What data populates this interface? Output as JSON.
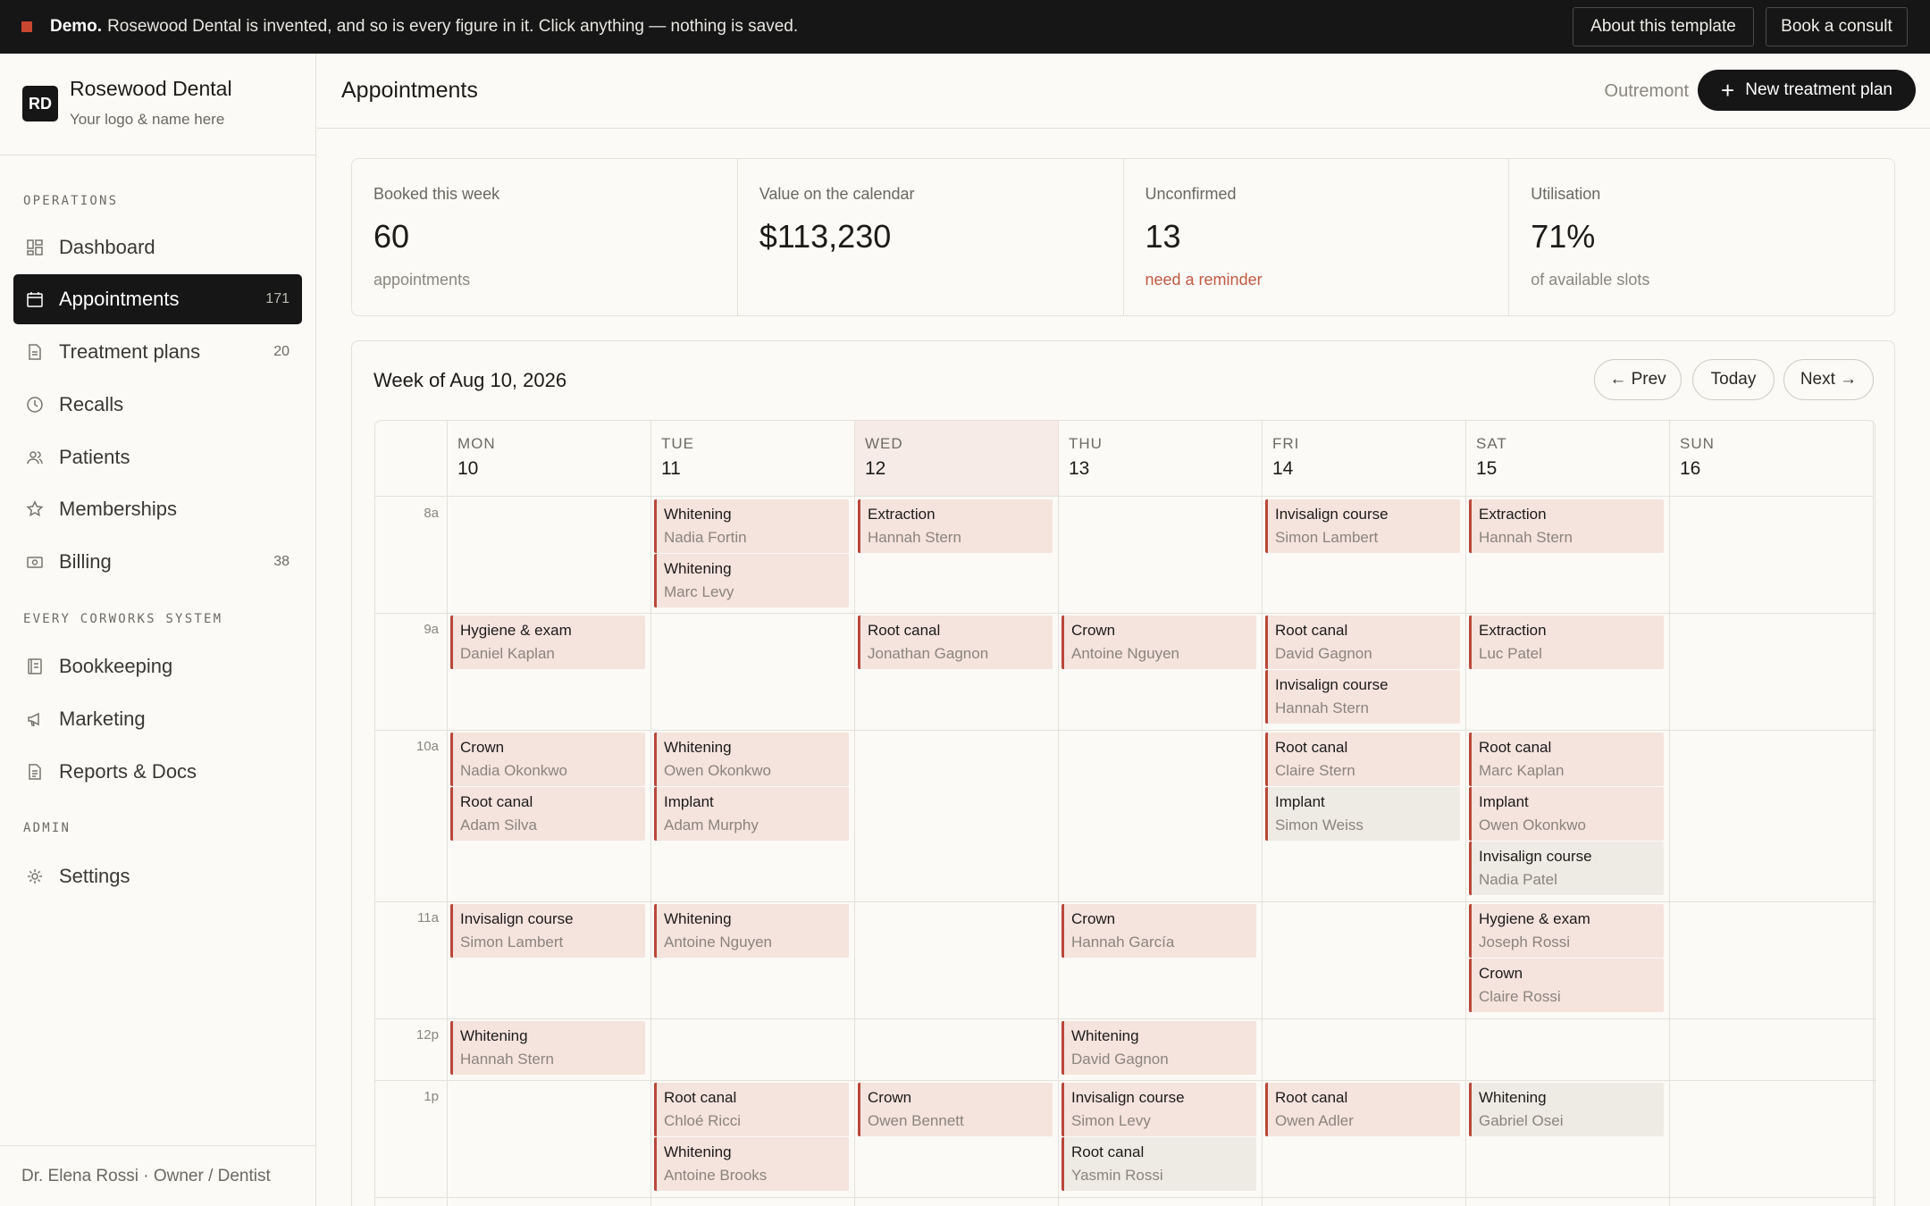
{
  "banner": {
    "lead": "Demo.",
    "text": "Rosewood Dental is invented, and so is every figure in it. Click anything — nothing is saved.",
    "about_label": "About this template",
    "consult_label": "Book a consult"
  },
  "brand": {
    "initials": "RD",
    "name": "Rosewood Dental",
    "tagline": "Your logo & name here"
  },
  "sidebar": {
    "sections": [
      "OPERATIONS",
      "EVERY CORWORKS SYSTEM",
      "ADMIN"
    ],
    "items": [
      {
        "label": "Dashboard",
        "count": "",
        "icon": "dashboard-icon"
      },
      {
        "label": "Appointments",
        "count": "171",
        "icon": "calendar-icon"
      },
      {
        "label": "Treatment plans",
        "count": "20",
        "icon": "document-icon"
      },
      {
        "label": "Recalls",
        "count": "",
        "icon": "clock-icon"
      },
      {
        "label": "Patients",
        "count": "",
        "icon": "people-icon"
      },
      {
        "label": "Memberships",
        "count": "",
        "icon": "star-icon"
      },
      {
        "label": "Billing",
        "count": "38",
        "icon": "billing-icon"
      },
      {
        "label": "Bookkeeping",
        "count": "",
        "icon": "ledger-icon"
      },
      {
        "label": "Marketing",
        "count": "",
        "icon": "megaphone-icon"
      },
      {
        "label": "Reports & Docs",
        "count": "",
        "icon": "report-icon"
      },
      {
        "label": "Settings",
        "count": "",
        "icon": "gear-icon"
      }
    ],
    "footer": "Dr. Elena Rossi · Owner / Dentist"
  },
  "header": {
    "title": "Appointments",
    "location": "Outremont",
    "new_label": "New treatment plan"
  },
  "stats": [
    {
      "label": "Booked this week",
      "value": "60",
      "sub": "appointments"
    },
    {
      "label": "Value on the calendar",
      "value": "$113,230",
      "sub": ""
    },
    {
      "label": "Unconfirmed",
      "value": "13",
      "sub": "need a reminder"
    },
    {
      "label": "Utilisation",
      "value": "71%",
      "sub": "of available slots"
    }
  ],
  "calendar": {
    "week_label": "Week of Aug 10, 2026",
    "prev_label": "← Prev",
    "today_label": "Today",
    "next_label": "Next →",
    "days": [
      {
        "name": "MON",
        "date": "10"
      },
      {
        "name": "TUE",
        "date": "11"
      },
      {
        "name": "WED",
        "date": "12"
      },
      {
        "name": "THU",
        "date": "13"
      },
      {
        "name": "FRI",
        "date": "14"
      },
      {
        "name": "SAT",
        "date": "15"
      },
      {
        "name": "SUN",
        "date": "16"
      }
    ],
    "today_index": 2,
    "hours": [
      "8a",
      "9a",
      "10a",
      "11a",
      "12p",
      "1p"
    ],
    "appointments": [
      {
        "day": 1,
        "hour": 0,
        "slot": 0,
        "type": "Whitening",
        "patient": "Nadia Fortin",
        "muted": false
      },
      {
        "day": 1,
        "hour": 0,
        "slot": 1,
        "type": "Whitening",
        "patient": "Marc Levy",
        "muted": false
      },
      {
        "day": 2,
        "hour": 0,
        "slot": 0,
        "type": "Extraction",
        "patient": "Hannah Stern",
        "muted": false
      },
      {
        "day": 4,
        "hour": 0,
        "slot": 0,
        "type": "Invisalign course",
        "patient": "Simon Lambert",
        "muted": false
      },
      {
        "day": 5,
        "hour": 0,
        "slot": 0,
        "type": "Extraction",
        "patient": "Hannah Stern",
        "muted": false
      },
      {
        "day": 0,
        "hour": 1,
        "slot": 0,
        "type": "Hygiene & exam",
        "patient": "Daniel Kaplan",
        "muted": false
      },
      {
        "day": 2,
        "hour": 1,
        "slot": 0,
        "type": "Root canal",
        "patient": "Jonathan Gagnon",
        "muted": false
      },
      {
        "day": 3,
        "hour": 1,
        "slot": 0,
        "type": "Crown",
        "patient": "Antoine Nguyen",
        "muted": false
      },
      {
        "day": 4,
        "hour": 1,
        "slot": 0,
        "type": "Root canal",
        "patient": "David Gagnon",
        "muted": false
      },
      {
        "day": 4,
        "hour": 1,
        "slot": 1,
        "type": "Invisalign course",
        "patient": "Hannah Stern",
        "muted": false
      },
      {
        "day": 5,
        "hour": 1,
        "slot": 0,
        "type": "Extraction",
        "patient": "Luc Patel",
        "muted": false
      },
      {
        "day": 0,
        "hour": 2,
        "slot": 0,
        "type": "Crown",
        "patient": "Nadia Okonkwo",
        "muted": false
      },
      {
        "day": 0,
        "hour": 2,
        "slot": 1,
        "type": "Root canal",
        "patient": "Adam Silva",
        "muted": false
      },
      {
        "day": 1,
        "hour": 2,
        "slot": 0,
        "type": "Whitening",
        "patient": "Owen Okonkwo",
        "muted": false
      },
      {
        "day": 1,
        "hour": 2,
        "slot": 1,
        "type": "Implant",
        "patient": "Adam Murphy",
        "muted": false
      },
      {
        "day": 4,
        "hour": 2,
        "slot": 0,
        "type": "Root canal",
        "patient": "Claire Stern",
        "muted": false
      },
      {
        "day": 4,
        "hour": 2,
        "slot": 1,
        "type": "Implant",
        "patient": "Simon Weiss",
        "muted": true
      },
      {
        "day": 5,
        "hour": 2,
        "slot": 0,
        "type": "Root canal",
        "patient": "Marc Kaplan",
        "muted": false
      },
      {
        "day": 5,
        "hour": 2,
        "slot": 1,
        "type": "Implant",
        "patient": "Owen Okonkwo",
        "muted": false
      },
      {
        "day": 5,
        "hour": 2,
        "slot": 2,
        "type": "Invisalign course",
        "patient": "Nadia Patel",
        "muted": true
      },
      {
        "day": 0,
        "hour": 3,
        "slot": 0,
        "type": "Invisalign course",
        "patient": "Simon Lambert",
        "muted": false
      },
      {
        "day": 1,
        "hour": 3,
        "slot": 0,
        "type": "Whitening",
        "patient": "Antoine Nguyen",
        "muted": false
      },
      {
        "day": 3,
        "hour": 3,
        "slot": 0,
        "type": "Crown",
        "patient": "Hannah García",
        "muted": false
      },
      {
        "day": 5,
        "hour": 3,
        "slot": 0,
        "type": "Hygiene & exam",
        "patient": "Joseph Rossi",
        "muted": false
      },
      {
        "day": 5,
        "hour": 3,
        "slot": 1,
        "type": "Crown",
        "patient": "Claire Rossi",
        "muted": false
      },
      {
        "day": 0,
        "hour": 4,
        "slot": 0,
        "type": "Whitening",
        "patient": "Hannah Stern",
        "muted": false
      },
      {
        "day": 3,
        "hour": 4,
        "slot": 0,
        "type": "Whitening",
        "patient": "David Gagnon",
        "muted": false
      },
      {
        "day": 1,
        "hour": 5,
        "slot": 0,
        "type": "Root canal",
        "patient": "Chloé Ricci",
        "muted": false
      },
      {
        "day": 1,
        "hour": 5,
        "slot": 1,
        "type": "Whitening",
        "patient": "Antoine Brooks",
        "muted": false
      },
      {
        "day": 2,
        "hour": 5,
        "slot": 0,
        "type": "Crown",
        "patient": "Owen Bennett",
        "muted": false
      },
      {
        "day": 3,
        "hour": 5,
        "slot": 0,
        "type": "Invisalign course",
        "patient": "Simon Levy",
        "muted": false
      },
      {
        "day": 3,
        "hour": 5,
        "slot": 1,
        "type": "Root canal",
        "patient": "Yasmin Rossi",
        "muted": true
      },
      {
        "day": 4,
        "hour": 5,
        "slot": 0,
        "type": "Root canal",
        "patient": "Owen Adler",
        "muted": false
      },
      {
        "day": 5,
        "hour": 5,
        "slot": 0,
        "type": "Whitening",
        "patient": "Gabriel Osei",
        "muted": true
      }
    ]
  },
  "colors": {
    "accent": "#b8483a",
    "appt_bg": "#f5e3de",
    "appt_muted_bg": "#eeebe4",
    "dark": "#161616"
  }
}
